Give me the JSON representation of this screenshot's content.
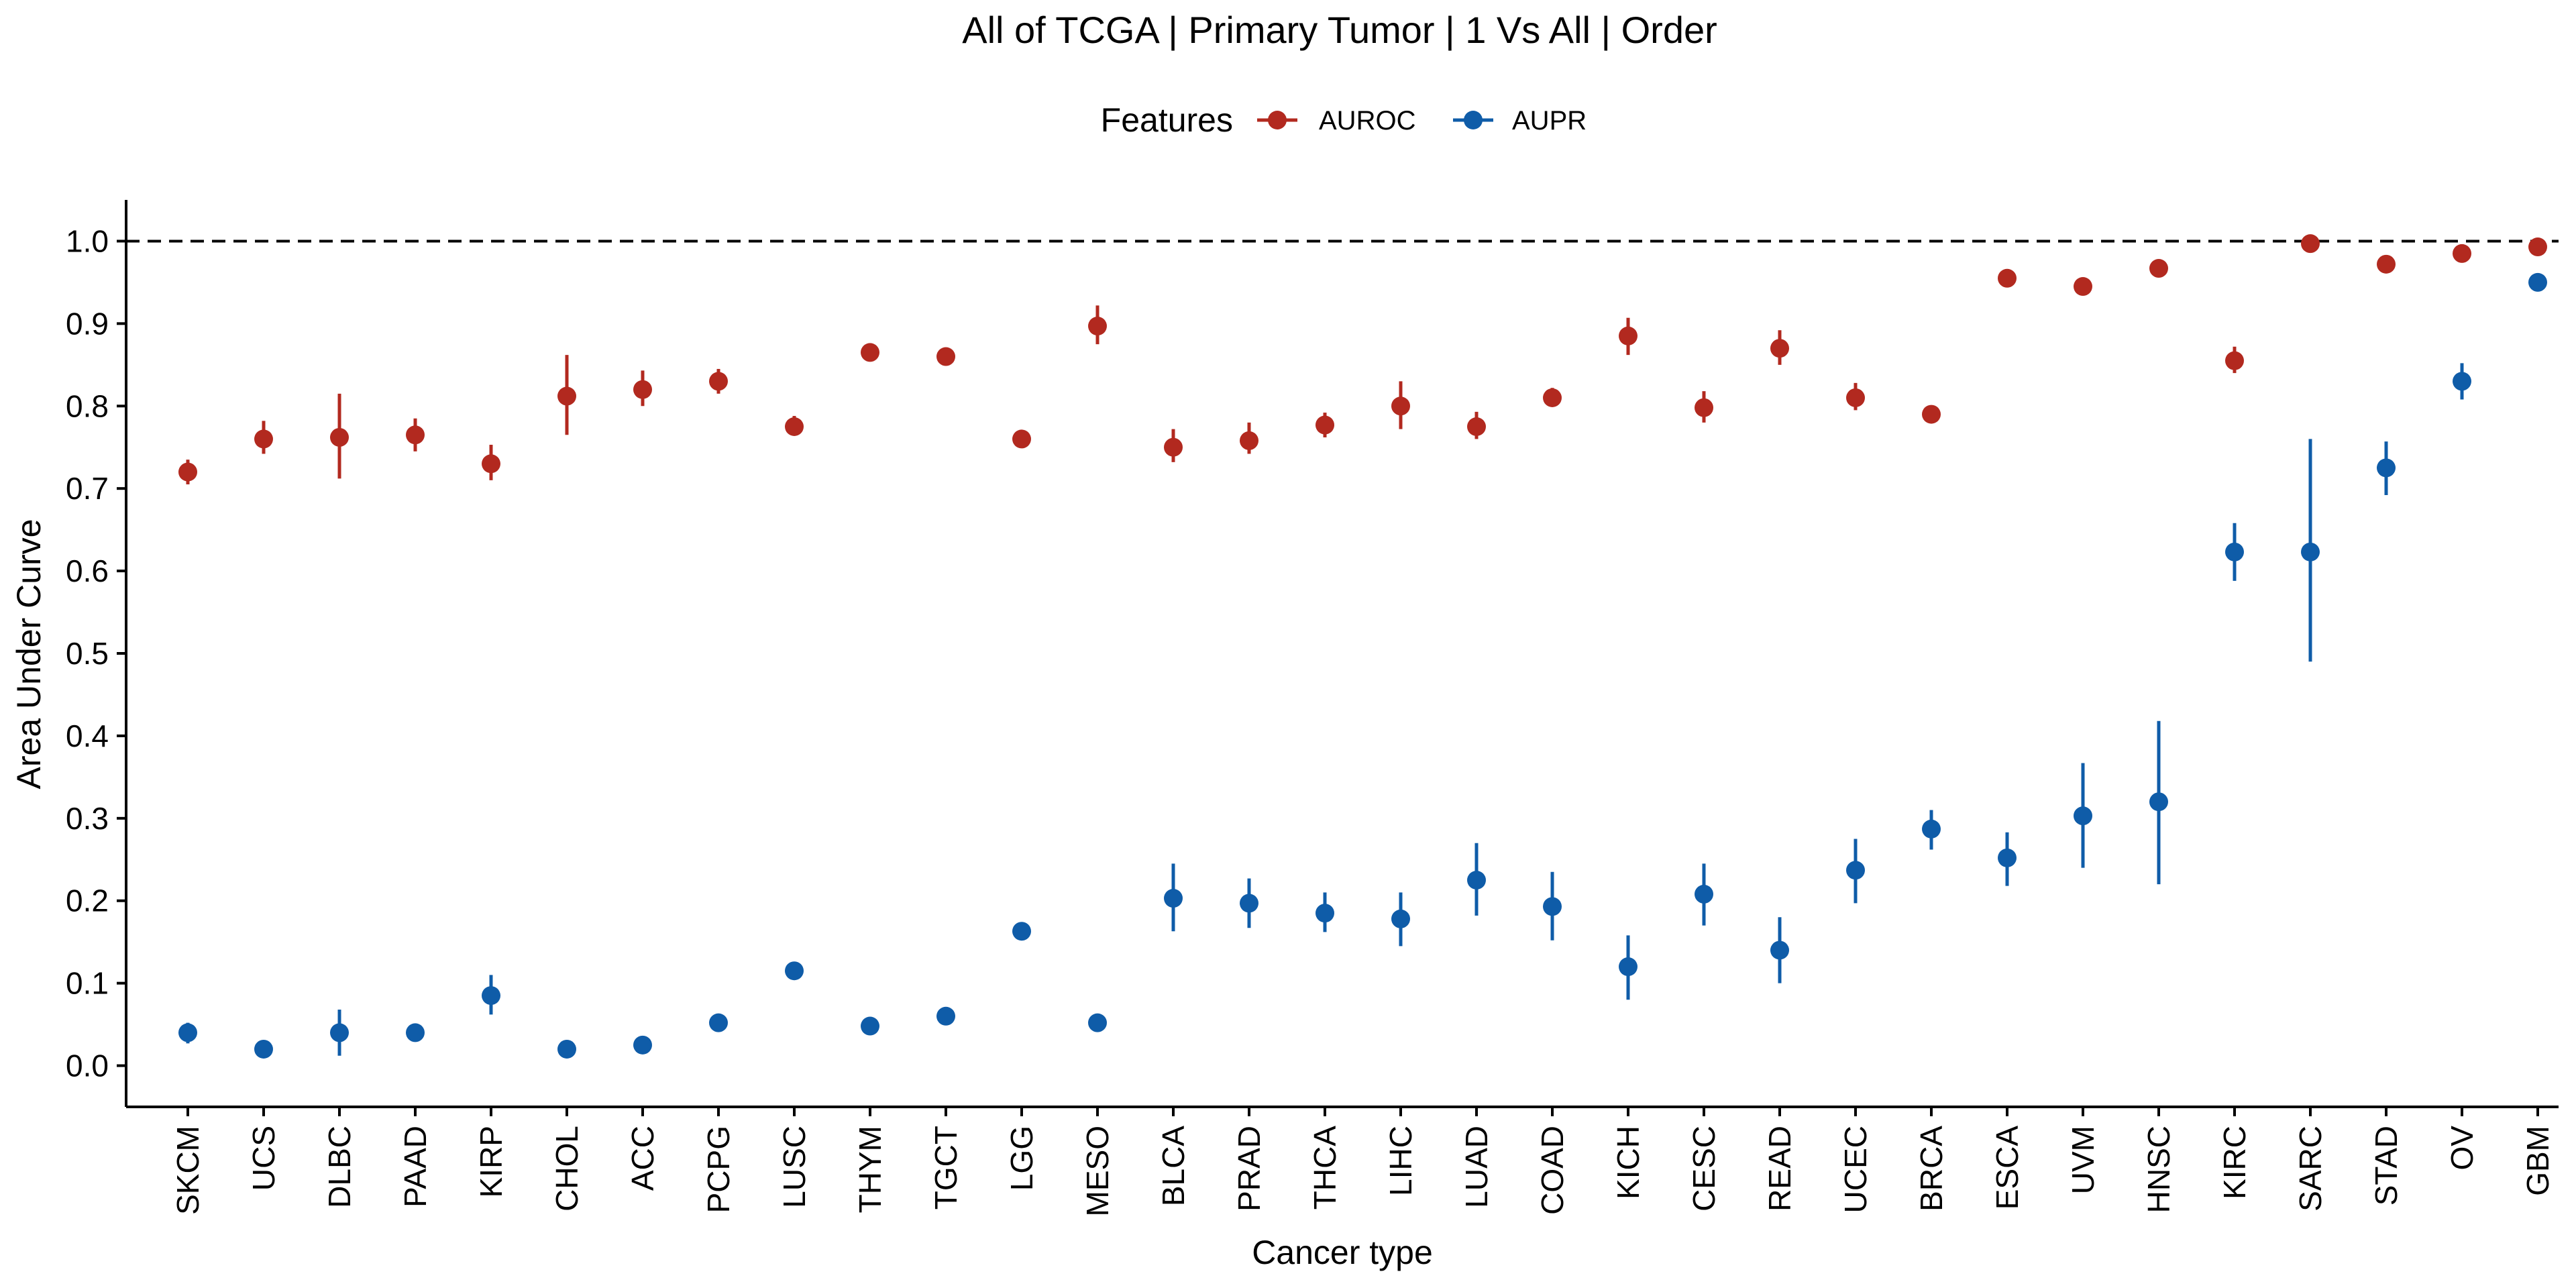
{
  "chart_data": {
    "type": "scatter",
    "title": "All of TCGA | Primary Tumor | 1 Vs All | Order",
    "xlabel": "Cancer type",
    "ylabel": "Area Under Curve",
    "ylim": [
      -0.05,
      1.05
    ],
    "yticks": [
      0.0,
      0.1,
      0.2,
      0.3,
      0.4,
      0.5,
      0.6,
      0.7,
      0.8,
      0.9,
      1.0
    ],
    "ytick_labels": [
      "0.0",
      "0.1",
      "0.2",
      "0.3",
      "0.4",
      "0.5",
      "0.6",
      "0.7",
      "0.8",
      "0.9",
      "1.0"
    ],
    "reference_line": 1.0,
    "grid": false,
    "legend": {
      "title": "Features",
      "placement": "top"
    },
    "categories": [
      "SKCM",
      "UCS",
      "DLBC",
      "PAAD",
      "KIRP",
      "CHOL",
      "ACC",
      "PCPG",
      "LUSC",
      "THYM",
      "TGCT",
      "LGG",
      "MESO",
      "BLCA",
      "PRAD",
      "THCA",
      "LIHC",
      "LUAD",
      "COAD",
      "KICH",
      "CESC",
      "READ",
      "UCEC",
      "BRCA",
      "ESCA",
      "UVM",
      "HNSC",
      "KIRC",
      "SARC",
      "STAD",
      "OV",
      "GBM"
    ],
    "series": [
      {
        "name": "AUROC",
        "color": "#b2291f",
        "values": [
          0.72,
          0.76,
          0.762,
          0.765,
          0.73,
          0.812,
          0.82,
          0.83,
          0.775,
          0.865,
          0.86,
          0.76,
          0.897,
          0.75,
          0.758,
          0.777,
          0.8,
          0.775,
          0.81,
          0.885,
          0.798,
          0.87,
          0.81,
          0.79,
          0.955,
          0.945,
          0.967,
          0.855,
          0.997,
          0.972,
          0.985,
          0.993
        ],
        "lower": [
          0.705,
          0.742,
          0.712,
          0.745,
          0.71,
          0.765,
          0.8,
          0.815,
          0.765,
          0.86,
          0.86,
          0.76,
          0.875,
          0.732,
          0.742,
          0.762,
          0.772,
          0.76,
          0.8,
          0.862,
          0.78,
          0.85,
          0.795,
          0.79,
          0.955,
          0.945,
          0.967,
          0.84,
          0.997,
          0.972,
          0.985,
          0.993
        ],
        "upper": [
          0.735,
          0.782,
          0.815,
          0.785,
          0.753,
          0.862,
          0.843,
          0.845,
          0.788,
          0.87,
          0.86,
          0.76,
          0.922,
          0.772,
          0.78,
          0.792,
          0.83,
          0.793,
          0.822,
          0.907,
          0.818,
          0.892,
          0.828,
          0.79,
          0.955,
          0.945,
          0.967,
          0.872,
          0.997,
          0.972,
          0.985,
          0.993
        ]
      },
      {
        "name": "AUPR",
        "color": "#0f5ca8",
        "values": [
          0.04,
          0.02,
          0.04,
          0.04,
          0.085,
          0.02,
          0.025,
          0.052,
          0.115,
          0.048,
          0.06,
          0.163,
          0.052,
          0.203,
          0.197,
          0.185,
          0.178,
          0.225,
          0.193,
          0.12,
          0.208,
          0.14,
          0.237,
          0.287,
          0.252,
          0.303,
          0.32,
          0.623,
          0.623,
          0.725,
          0.83,
          0.95
        ],
        "lower": [
          0.027,
          0.02,
          0.012,
          0.04,
          0.062,
          0.02,
          0.025,
          0.052,
          0.115,
          0.048,
          0.06,
          0.153,
          0.052,
          0.163,
          0.167,
          0.162,
          0.145,
          0.182,
          0.152,
          0.08,
          0.17,
          0.1,
          0.197,
          0.262,
          0.218,
          0.24,
          0.22,
          0.588,
          0.49,
          0.692,
          0.808,
          0.95
        ],
        "upper": [
          0.052,
          0.02,
          0.068,
          0.04,
          0.11,
          0.02,
          0.025,
          0.052,
          0.115,
          0.048,
          0.06,
          0.173,
          0.052,
          0.245,
          0.227,
          0.21,
          0.21,
          0.27,
          0.235,
          0.158,
          0.245,
          0.18,
          0.275,
          0.31,
          0.283,
          0.367,
          0.418,
          0.658,
          0.76,
          0.757,
          0.852,
          0.95
        ]
      }
    ]
  }
}
